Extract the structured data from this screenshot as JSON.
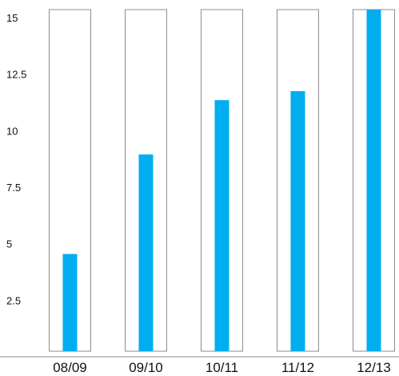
{
  "chart_data": {
    "type": "bar",
    "title": "",
    "xlabel": "",
    "ylabel": "",
    "categories": [
      "08/09",
      "09/10",
      "10/11",
      "11/12",
      "12/13"
    ],
    "values": [
      4.3,
      8.7,
      11.1,
      11.5,
      15.1
    ],
    "ylim": [
      0,
      15
    ],
    "yticks": [
      2.5,
      5,
      7.5,
      10,
      12.5,
      15
    ],
    "ytick_labels": [
      "2.5",
      "5",
      "7.5",
      "10",
      "12.5",
      "15"
    ],
    "grid": false,
    "legend": "none",
    "bar_color": "#00aeef",
    "frame_color": "#8c8c8c"
  }
}
